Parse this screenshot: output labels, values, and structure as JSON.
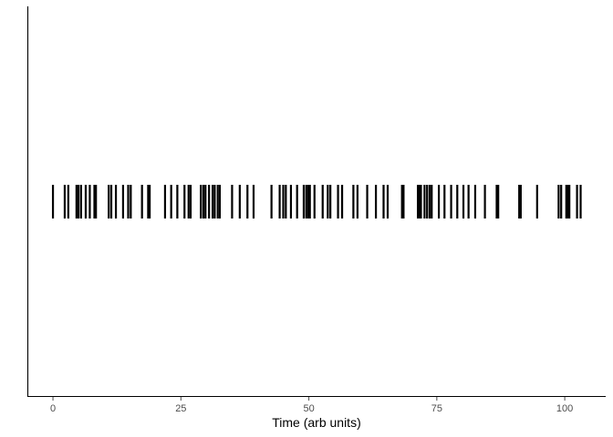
{
  "chart_data": {
    "type": "scatter",
    "mark": "event-raster",
    "title": "",
    "xlabel": "Time (arb units)",
    "ylabel": "",
    "xlim": [
      -5,
      108
    ],
    "x_ticks": [
      {
        "value": 0,
        "label": "0"
      },
      {
        "value": 25,
        "label": "25"
      },
      {
        "value": 50,
        "label": "50"
      },
      {
        "value": 75,
        "label": "75"
      },
      {
        "value": 100,
        "label": "100"
      }
    ],
    "grid": false,
    "legend": "none",
    "events": [
      0.0,
      2.3,
      3.0,
      4.6,
      5.0,
      5.5,
      6.4,
      7.2,
      8.1,
      8.4,
      10.9,
      11.4,
      12.3,
      13.7,
      14.7,
      15.2,
      17.4,
      18.6,
      18.9,
      21.9,
      23.1,
      24.3,
      25.7,
      26.5,
      26.9,
      28.9,
      29.4,
      29.8,
      30.5,
      31.2,
      31.6,
      32.2,
      32.6,
      35.0,
      36.5,
      38.0,
      39.2,
      42.7,
      44.3,
      45.0,
      45.5,
      46.5,
      47.7,
      49.0,
      49.5,
      49.9,
      50.2,
      51.1,
      52.7,
      53.7,
      54.2,
      55.7,
      56.5,
      58.7,
      59.5,
      61.4,
      63.1,
      64.6,
      65.4,
      68.2,
      68.5,
      71.3,
      71.6,
      71.9,
      72.6,
      73.1,
      73.6,
      74.0,
      75.4,
      76.5,
      77.8,
      79.0,
      80.2,
      81.2,
      82.5,
      84.4,
      86.7,
      87.0,
      91.1,
      91.4,
      94.6,
      98.8,
      99.3,
      100.3,
      100.6,
      100.9,
      102.4,
      103.1
    ]
  },
  "colors": {
    "mark": "#000000",
    "axis": "#000000",
    "tick_label": "#4d4d4d",
    "background": "#ffffff"
  }
}
